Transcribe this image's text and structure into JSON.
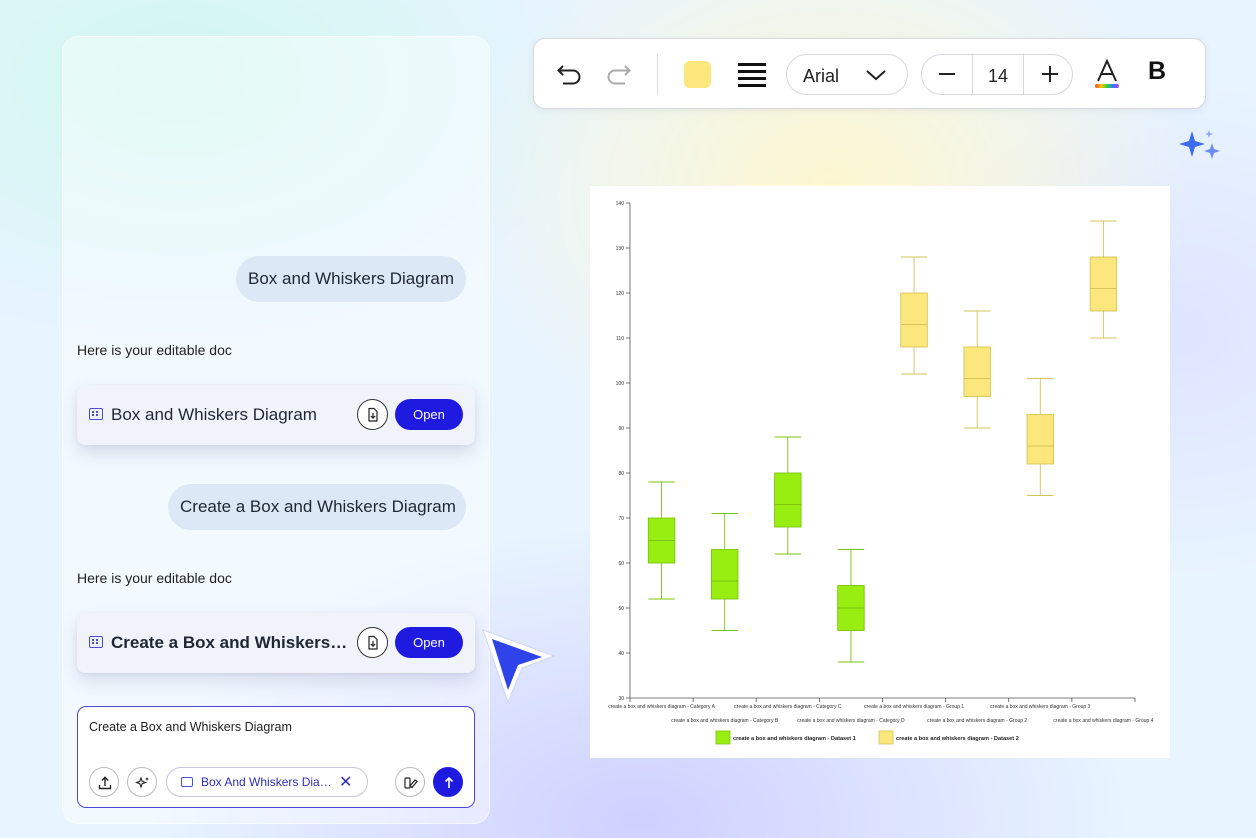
{
  "chat": {
    "messages": [
      {
        "role": "user",
        "text": "Box and Whiskers Diagram"
      },
      {
        "role": "assistant",
        "text": "Here is your editable doc",
        "doc_title": "Box and Whiskers Diagram",
        "open_label": "Open"
      },
      {
        "role": "user",
        "text": "Create a Box and Whiskers Diagram"
      },
      {
        "role": "assistant",
        "text": "Here is your editable doc",
        "doc_title": "Create a Box and Whiskers Diagram",
        "open_label": "Open"
      }
    ],
    "composer": {
      "text": "Create a Box and Whiskers Diagram",
      "chip_label": "Box And Whiskers Diagram",
      "chip_close": "✕"
    }
  },
  "toolbar": {
    "fill_color": "#fbe77b",
    "font": "Arial",
    "font_size": "14",
    "bold_label": "B",
    "font_color_label": "A"
  },
  "colors": {
    "accent": "#1f1ae0",
    "dataset1": "#99ee11",
    "dataset2": "#fbe77b"
  },
  "chart_data": {
    "type": "box",
    "ylim": [
      30,
      140
    ],
    "yticks": [
      30,
      40,
      50,
      60,
      70,
      80,
      90,
      100,
      110,
      120,
      130,
      140
    ],
    "categories": [
      "create a box and whiskers diagram - Category A",
      "create a box and whiskers diagram - Category B",
      "create a box and whiskers diagram - Category C",
      "create a box and whiskers diagram - Category D",
      "create a box and whiskers diagram - Group 1",
      "create a box and whiskers diagram - Group 2",
      "create a box and whiskers diagram - Group 3",
      "create a box and whiskers diagram - Group 4"
    ],
    "series": [
      {
        "name": "create a box and whiskers diagram - Dataset 1",
        "color": "#99ee11",
        "boxes": [
          {
            "category": 0,
            "min": 52,
            "q1": 60,
            "median": 65,
            "q3": 70,
            "max": 78
          },
          {
            "category": 1,
            "min": 45,
            "q1": 52,
            "median": 56,
            "q3": 63,
            "max": 71
          },
          {
            "category": 2,
            "min": 62,
            "q1": 68,
            "median": 73,
            "q3": 80,
            "max": 88
          },
          {
            "category": 3,
            "min": 38,
            "q1": 45,
            "median": 50,
            "q3": 55,
            "max": 63
          }
        ]
      },
      {
        "name": "create a box and whiskers diagram - Dataset 2",
        "color": "#fbe77b",
        "boxes": [
          {
            "category": 4,
            "min": 102,
            "q1": 108,
            "median": 113,
            "q3": 120,
            "max": 128
          },
          {
            "category": 5,
            "min": 90,
            "q1": 97,
            "median": 101,
            "q3": 108,
            "max": 116
          },
          {
            "category": 6,
            "min": 75,
            "q1": 82,
            "median": 86,
            "q3": 93,
            "max": 101
          },
          {
            "category": 7,
            "min": 110,
            "q1": 116,
            "median": 121,
            "q3": 128,
            "max": 136
          }
        ]
      }
    ]
  }
}
